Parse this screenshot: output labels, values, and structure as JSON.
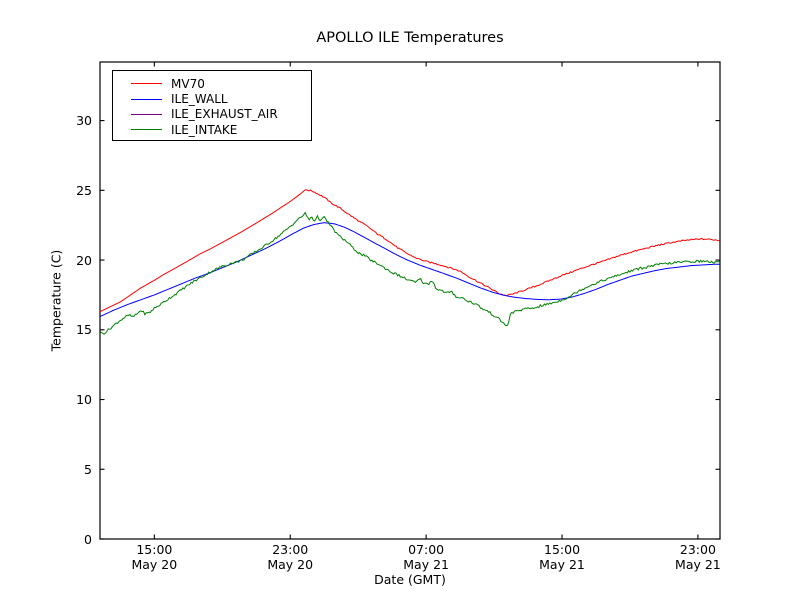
{
  "chart_data": {
    "type": "line",
    "title": "APOLLO ILE Temperatures",
    "xlabel": "Date (GMT)",
    "ylabel": "Temperature (C)",
    "x_unit": "hours since May 20 00:00 GMT",
    "xlim": [
      11.8,
      48.3
    ],
    "ylim": [
      0,
      34.2
    ],
    "grid": false,
    "legend_position": "upper left",
    "yticks": [
      0,
      5,
      10,
      15,
      20,
      25,
      30
    ],
    "xticks": [
      {
        "value": 15,
        "time": "15:00",
        "date": "May 20"
      },
      {
        "value": 23,
        "time": "23:00",
        "date": "May 20"
      },
      {
        "value": 31,
        "time": "07:00",
        "date": "May 21"
      },
      {
        "value": 39,
        "time": "15:00",
        "date": "May 21"
      },
      {
        "value": 47,
        "time": "23:00",
        "date": "May 21"
      }
    ],
    "series": [
      {
        "name": "MV70",
        "color": "#ff0000",
        "noise": 0.05,
        "noise_start": 23.9,
        "points": [
          [
            11.8,
            16.3
          ],
          [
            12.4,
            16.65
          ],
          [
            13.0,
            17.0
          ],
          [
            13.6,
            17.5
          ],
          [
            14.2,
            18.0
          ],
          [
            15.0,
            18.55
          ],
          [
            15.6,
            19.0
          ],
          [
            16.2,
            19.4
          ],
          [
            17.0,
            19.95
          ],
          [
            17.7,
            20.45
          ],
          [
            18.3,
            20.8
          ],
          [
            19.2,
            21.4
          ],
          [
            20.1,
            22.0
          ],
          [
            21.0,
            22.65
          ],
          [
            22.0,
            23.4
          ],
          [
            23.0,
            24.2
          ],
          [
            23.5,
            24.65
          ],
          [
            23.9,
            25.05
          ],
          [
            24.3,
            24.95
          ],
          [
            24.7,
            24.7
          ],
          [
            25.0,
            24.5
          ],
          [
            25.4,
            24.1
          ],
          [
            25.9,
            23.75
          ],
          [
            26.3,
            23.4
          ],
          [
            26.9,
            22.9
          ],
          [
            27.5,
            22.45
          ],
          [
            28.1,
            21.9
          ],
          [
            28.7,
            21.45
          ],
          [
            29.3,
            20.9
          ],
          [
            29.9,
            20.45
          ],
          [
            30.4,
            20.15
          ],
          [
            31.0,
            19.9
          ],
          [
            31.7,
            19.7
          ],
          [
            32.4,
            19.45
          ],
          [
            33.0,
            19.2
          ],
          [
            33.6,
            18.75
          ],
          [
            34.2,
            18.35
          ],
          [
            34.8,
            17.95
          ],
          [
            35.3,
            17.6
          ],
          [
            35.7,
            17.45
          ],
          [
            36.2,
            17.6
          ],
          [
            36.8,
            17.85
          ],
          [
            37.5,
            18.15
          ],
          [
            38.2,
            18.5
          ],
          [
            39.0,
            18.9
          ],
          [
            39.8,
            19.25
          ],
          [
            40.6,
            19.6
          ],
          [
            41.4,
            19.9
          ],
          [
            42.2,
            20.25
          ],
          [
            43.0,
            20.55
          ],
          [
            43.8,
            20.8
          ],
          [
            44.6,
            21.05
          ],
          [
            45.4,
            21.25
          ],
          [
            46.2,
            21.4
          ],
          [
            47.0,
            21.5
          ],
          [
            47.5,
            21.5
          ],
          [
            48.0,
            21.45
          ],
          [
            48.3,
            21.4
          ]
        ]
      },
      {
        "name": "ILE_WALL",
        "color": "#0000ff",
        "noise": 0,
        "noise_start": 0,
        "points": [
          [
            11.8,
            15.95
          ],
          [
            12.6,
            16.4
          ],
          [
            13.4,
            16.8
          ],
          [
            14.2,
            17.15
          ],
          [
            15.0,
            17.5
          ],
          [
            15.8,
            17.9
          ],
          [
            16.6,
            18.3
          ],
          [
            17.4,
            18.7
          ],
          [
            18.3,
            19.1
          ],
          [
            19.1,
            19.5
          ],
          [
            19.9,
            19.9
          ],
          [
            20.7,
            20.35
          ],
          [
            21.5,
            20.8
          ],
          [
            22.3,
            21.3
          ],
          [
            23.1,
            21.85
          ],
          [
            23.8,
            22.3
          ],
          [
            24.4,
            22.55
          ],
          [
            25.0,
            22.68
          ],
          [
            25.6,
            22.6
          ],
          [
            26.2,
            22.35
          ],
          [
            26.8,
            22.0
          ],
          [
            27.4,
            21.6
          ],
          [
            28.0,
            21.2
          ],
          [
            28.7,
            20.75
          ],
          [
            29.3,
            20.35
          ],
          [
            29.9,
            20.0
          ],
          [
            30.6,
            19.65
          ],
          [
            31.3,
            19.35
          ],
          [
            32.0,
            19.05
          ],
          [
            32.8,
            18.7
          ],
          [
            33.5,
            18.35
          ],
          [
            34.2,
            18.0
          ],
          [
            34.9,
            17.7
          ],
          [
            35.5,
            17.5
          ],
          [
            36.1,
            17.35
          ],
          [
            36.8,
            17.25
          ],
          [
            37.5,
            17.18
          ],
          [
            38.2,
            17.15
          ],
          [
            38.9,
            17.2
          ],
          [
            39.6,
            17.35
          ],
          [
            40.3,
            17.6
          ],
          [
            41.0,
            17.9
          ],
          [
            41.7,
            18.25
          ],
          [
            42.4,
            18.55
          ],
          [
            43.1,
            18.85
          ],
          [
            43.8,
            19.05
          ],
          [
            44.5,
            19.25
          ],
          [
            45.2,
            19.4
          ],
          [
            45.9,
            19.5
          ],
          [
            46.6,
            19.6
          ],
          [
            47.3,
            19.65
          ],
          [
            48.0,
            19.7
          ],
          [
            48.3,
            19.7
          ]
        ]
      },
      {
        "name": "ILE_EXHAUST_AIR",
        "color": "#800080",
        "noise": 0,
        "noise_start": 0,
        "points": []
      },
      {
        "name": "ILE_INTAKE",
        "color": "#008000",
        "noise": 0.085,
        "noise_start": 11.8,
        "points": [
          [
            11.8,
            14.8
          ],
          [
            12.0,
            14.72
          ],
          [
            12.3,
            15.0
          ],
          [
            12.6,
            15.3
          ],
          [
            12.9,
            15.6
          ],
          [
            13.2,
            15.85
          ],
          [
            13.5,
            16.05
          ],
          [
            13.75,
            15.92
          ],
          [
            14.0,
            16.15
          ],
          [
            14.2,
            16.4
          ],
          [
            14.45,
            16.15
          ],
          [
            14.7,
            16.22
          ],
          [
            15.0,
            16.55
          ],
          [
            15.4,
            16.85
          ],
          [
            15.8,
            17.2
          ],
          [
            16.3,
            17.6
          ],
          [
            16.8,
            18.05
          ],
          [
            17.3,
            18.45
          ],
          [
            17.8,
            18.8
          ],
          [
            18.3,
            19.15
          ],
          [
            18.9,
            19.5
          ],
          [
            19.5,
            19.75
          ],
          [
            20.1,
            19.95
          ],
          [
            20.7,
            20.4
          ],
          [
            21.3,
            20.85
          ],
          [
            21.9,
            21.35
          ],
          [
            22.4,
            21.8
          ],
          [
            22.9,
            22.3
          ],
          [
            23.4,
            22.85
          ],
          [
            23.9,
            23.35
          ],
          [
            24.1,
            22.85
          ],
          [
            24.25,
            23.15
          ],
          [
            24.4,
            22.8
          ],
          [
            24.6,
            23.1
          ],
          [
            24.8,
            22.85
          ],
          [
            25.0,
            23.05
          ],
          [
            25.2,
            22.75
          ],
          [
            25.45,
            22.35
          ],
          [
            25.7,
            21.95
          ],
          [
            26.0,
            21.6
          ],
          [
            26.3,
            21.35
          ],
          [
            26.7,
            20.85
          ],
          [
            27.1,
            20.45
          ],
          [
            27.4,
            20.3
          ],
          [
            27.8,
            19.95
          ],
          [
            28.2,
            19.7
          ],
          [
            28.6,
            19.4
          ],
          [
            29.0,
            19.1
          ],
          [
            29.4,
            18.9
          ],
          [
            29.8,
            18.65
          ],
          [
            30.1,
            18.5
          ],
          [
            30.4,
            18.4
          ],
          [
            30.65,
            18.65
          ],
          [
            30.9,
            18.3
          ],
          [
            31.15,
            18.3
          ],
          [
            31.35,
            18.55
          ],
          [
            31.6,
            17.95
          ],
          [
            31.9,
            17.8
          ],
          [
            32.2,
            17.65
          ],
          [
            32.5,
            17.7
          ],
          [
            32.8,
            17.35
          ],
          [
            33.1,
            17.3
          ],
          [
            33.4,
            17.1
          ],
          [
            33.7,
            16.95
          ],
          [
            34.0,
            16.8
          ],
          [
            34.3,
            16.5
          ],
          [
            34.6,
            16.35
          ],
          [
            34.9,
            16.1
          ],
          [
            35.2,
            15.85
          ],
          [
            35.45,
            15.6
          ],
          [
            35.65,
            15.35
          ],
          [
            35.8,
            15.28
          ],
          [
            35.95,
            16.1
          ],
          [
            36.2,
            16.3
          ],
          [
            36.5,
            16.4
          ],
          [
            36.9,
            16.5
          ],
          [
            37.3,
            16.55
          ],
          [
            37.7,
            16.7
          ],
          [
            38.2,
            16.85
          ],
          [
            38.8,
            17.05
          ],
          [
            39.4,
            17.35
          ],
          [
            40.0,
            17.8
          ],
          [
            40.6,
            18.15
          ],
          [
            41.2,
            18.45
          ],
          [
            41.8,
            18.7
          ],
          [
            42.4,
            18.95
          ],
          [
            43.0,
            19.2
          ],
          [
            43.6,
            19.4
          ],
          [
            44.2,
            19.55
          ],
          [
            44.8,
            19.7
          ],
          [
            45.4,
            19.78
          ],
          [
            46.0,
            19.85
          ],
          [
            46.6,
            19.9
          ],
          [
            47.2,
            19.92
          ],
          [
            47.7,
            19.88
          ],
          [
            48.3,
            19.8
          ]
        ]
      }
    ]
  }
}
